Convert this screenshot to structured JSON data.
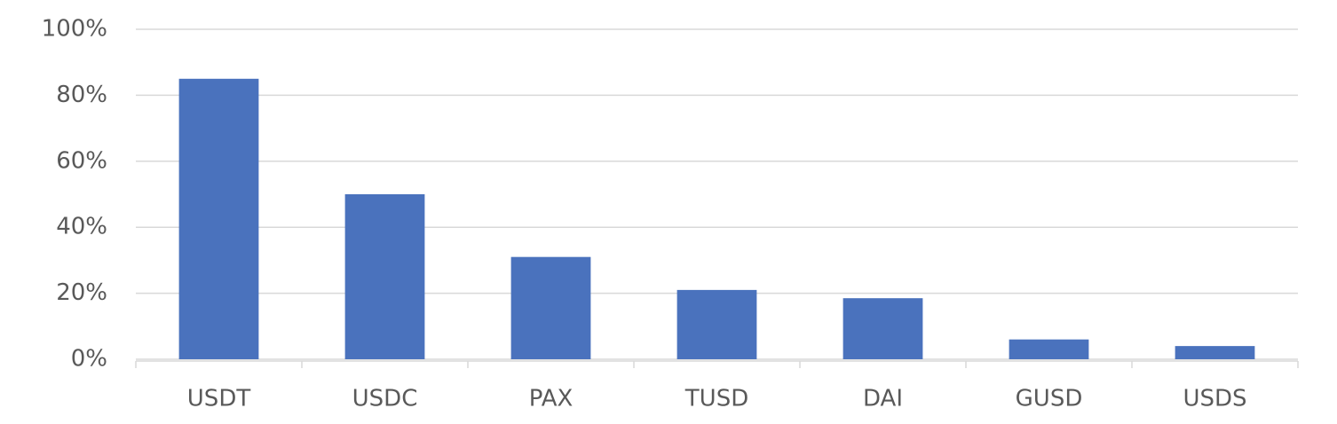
{
  "chart_data": {
    "type": "bar",
    "categories": [
      "USDT",
      "USDC",
      "PAX",
      "TUSD",
      "DAI",
      "GUSD",
      "USDS"
    ],
    "values": [
      85,
      50,
      31,
      21,
      18.5,
      6,
      4
    ],
    "color": "#4a72bd",
    "ylim": [
      0,
      100
    ],
    "yticks": [
      {
        "value": 0,
        "label": "0%"
      },
      {
        "value": 20,
        "label": "20%"
      },
      {
        "value": 40,
        "label": "40%"
      },
      {
        "value": 60,
        "label": "60%"
      },
      {
        "value": 80,
        "label": "80%"
      },
      {
        "value": 100,
        "label": "100%"
      }
    ],
    "grid": true
  }
}
